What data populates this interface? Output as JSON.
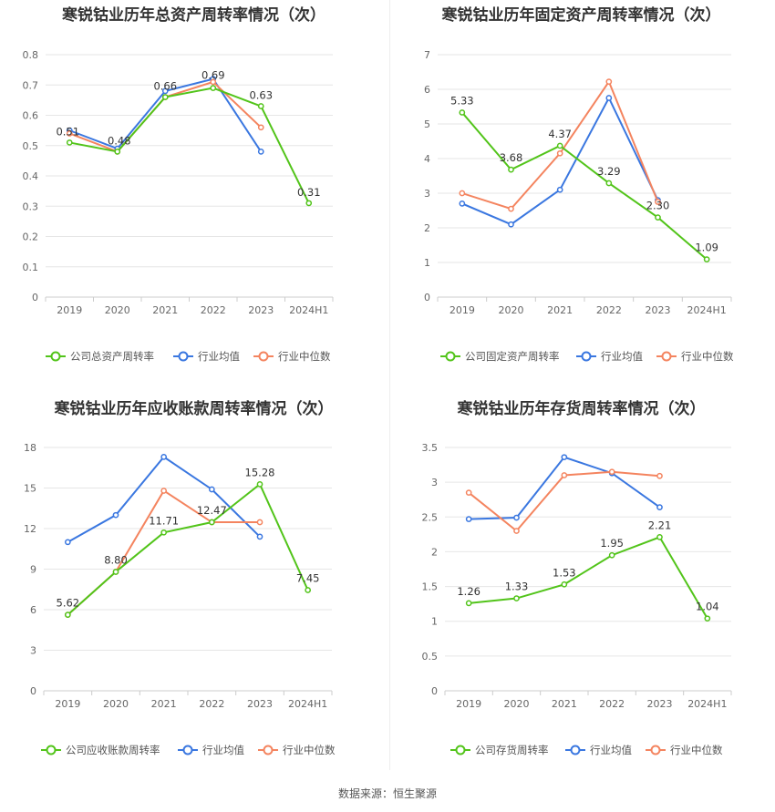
{
  "colors": {
    "company": "#52c41a",
    "industry_avg": "#3a77e0",
    "industry_median": "#f4845f",
    "grid": "#e6e6e6",
    "axis_text": "#666666"
  },
  "legend_labels": {
    "industry_avg": "行业均值",
    "industry_median": "行业中位数"
  },
  "source": "数据来源：恒生聚源",
  "chart_data": [
    {
      "type": "line",
      "title": "寒锐钴业历年总资产周转率情况（次）",
      "categories": [
        "2019",
        "2020",
        "2021",
        "2022",
        "2023",
        "2024H1"
      ],
      "yticks": [
        "0",
        "0.1",
        "0.2",
        "0.3",
        "0.4",
        "0.5",
        "0.6",
        "0.7",
        "0.8"
      ],
      "ylim": [
        0,
        0.8
      ],
      "legend": "bottom",
      "series": [
        {
          "name": "公司总资产周转率",
          "key": "company",
          "values": [
            0.51,
            0.48,
            0.66,
            0.69,
            0.63,
            0.31
          ],
          "labels": [
            "0.51",
            "0.48",
            "0.66",
            "0.69",
            "0.63",
            "0.31"
          ]
        },
        {
          "name": "行业均值",
          "key": "industry_avg",
          "values": [
            0.55,
            0.49,
            0.68,
            0.72,
            0.48,
            null
          ]
        },
        {
          "name": "行业中位数",
          "key": "industry_median",
          "values": [
            0.54,
            0.48,
            0.66,
            0.71,
            0.56,
            null
          ]
        }
      ]
    },
    {
      "type": "line",
      "title": "寒锐钴业历年固定资产周转率情况（次）",
      "categories": [
        "2019",
        "2020",
        "2021",
        "2022",
        "2023",
        "2024H1"
      ],
      "yticks": [
        "0",
        "1",
        "2",
        "3",
        "4",
        "5",
        "6",
        "7"
      ],
      "ylim": [
        0,
        7
      ],
      "legend": "bottom",
      "series": [
        {
          "name": "公司固定资产周转率",
          "key": "company",
          "values": [
            5.33,
            3.68,
            4.37,
            3.29,
            2.3,
            1.09
          ],
          "labels": [
            "5.33",
            "3.68",
            "4.37",
            "3.29",
            "2.30",
            "1.09"
          ]
        },
        {
          "name": "行业均值",
          "key": "industry_avg",
          "values": [
            2.7,
            2.1,
            3.1,
            5.75,
            2.8,
            null
          ]
        },
        {
          "name": "行业中位数",
          "key": "industry_median",
          "values": [
            3.0,
            2.55,
            4.15,
            6.22,
            2.75,
            null
          ]
        }
      ]
    },
    {
      "type": "line",
      "title": "寒锐钴业历年应收账款周转率情况（次）",
      "categories": [
        "2019",
        "2020",
        "2021",
        "2022",
        "2023",
        "2024H1"
      ],
      "yticks": [
        "0",
        "3",
        "6",
        "9",
        "12",
        "15",
        "18"
      ],
      "ylim": [
        0,
        18
      ],
      "legend": "bottom",
      "series": [
        {
          "name": "公司应收账款周转率",
          "key": "company",
          "values": [
            5.62,
            8.8,
            11.71,
            12.47,
            15.28,
            7.45
          ],
          "labels": [
            "5.62",
            "8.80",
            "11.71",
            "12.47",
            "15.28",
            "7.45"
          ]
        },
        {
          "name": "行业均值",
          "key": "industry_avg",
          "values": [
            11.0,
            13.0,
            17.3,
            14.9,
            11.4,
            null
          ]
        },
        {
          "name": "行业中位数",
          "key": "industry_median",
          "values": [
            5.62,
            8.8,
            14.8,
            12.47,
            12.47,
            null
          ]
        }
      ]
    },
    {
      "type": "line",
      "title": "寒锐钴业历年存货周转率情况（次）",
      "categories": [
        "2019",
        "2020",
        "2021",
        "2022",
        "2023",
        "2024H1"
      ],
      "yticks": [
        "0",
        "0.5",
        "1",
        "1.5",
        "2",
        "2.5",
        "3",
        "3.5"
      ],
      "ylim": [
        0,
        3.5
      ],
      "legend": "bottom",
      "series": [
        {
          "name": "公司存货周转率",
          "key": "company",
          "values": [
            1.26,
            1.33,
            1.53,
            1.95,
            2.21,
            1.04
          ],
          "labels": [
            "1.26",
            "1.33",
            "1.53",
            "1.95",
            "2.21",
            "1.04"
          ]
        },
        {
          "name": "行业均值",
          "key": "industry_avg",
          "values": [
            2.47,
            2.49,
            3.36,
            3.13,
            2.64,
            null
          ]
        },
        {
          "name": "行业中位数",
          "key": "industry_median",
          "values": [
            2.85,
            2.3,
            3.1,
            3.15,
            3.09,
            null
          ]
        }
      ]
    }
  ]
}
